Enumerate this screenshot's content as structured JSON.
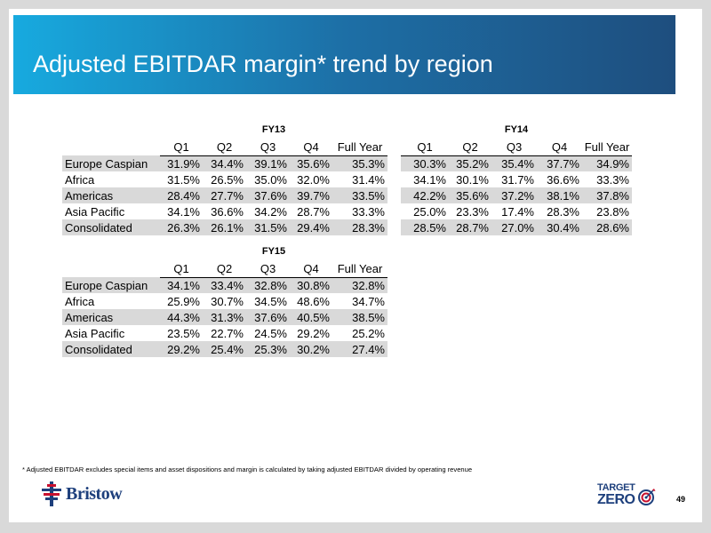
{
  "title": "Adjusted EBITDAR margin* trend by region",
  "columns": [
    "Q1",
    "Q2",
    "Q3",
    "Q4",
    "Full Year"
  ],
  "tables": [
    {
      "year": "FY13",
      "rows": [
        {
          "region": "Europe Caspian",
          "values": [
            "31.9%",
            "34.4%",
            "39.1%",
            "35.6%",
            "35.3%"
          ]
        },
        {
          "region": "Africa",
          "values": [
            "31.5%",
            "26.5%",
            "35.0%",
            "32.0%",
            "31.4%"
          ]
        },
        {
          "region": "Americas",
          "values": [
            "28.4%",
            "27.7%",
            "37.6%",
            "39.7%",
            "33.5%"
          ]
        },
        {
          "region": "Asia Pacific",
          "values": [
            "34.1%",
            "36.6%",
            "34.2%",
            "28.7%",
            "33.3%"
          ]
        },
        {
          "region": "Consolidated",
          "values": [
            "26.3%",
            "26.1%",
            "31.5%",
            "29.4%",
            "28.3%"
          ]
        }
      ]
    },
    {
      "year": "FY14",
      "rows": [
        {
          "values": [
            "30.3%",
            "35.2%",
            "35.4%",
            "37.7%",
            "34.9%"
          ]
        },
        {
          "values": [
            "34.1%",
            "30.1%",
            "31.7%",
            "36.6%",
            "33.3%"
          ]
        },
        {
          "values": [
            "42.2%",
            "35.6%",
            "37.2%",
            "38.1%",
            "37.8%"
          ]
        },
        {
          "values": [
            "25.0%",
            "23.3%",
            "17.4%",
            "28.3%",
            "23.8%"
          ]
        },
        {
          "values": [
            "28.5%",
            "28.7%",
            "27.0%",
            "30.4%",
            "28.6%"
          ]
        }
      ]
    },
    {
      "year": "FY15",
      "rows": [
        {
          "region": "Europe Caspian",
          "values": [
            "34.1%",
            "33.4%",
            "32.8%",
            "30.8%",
            "32.8%"
          ]
        },
        {
          "region": "Africa",
          "values": [
            "25.9%",
            "30.7%",
            "34.5%",
            "48.6%",
            "34.7%"
          ]
        },
        {
          "region": "Americas",
          "values": [
            "44.3%",
            "31.3%",
            "37.6%",
            "40.5%",
            "38.5%"
          ]
        },
        {
          "region": "Asia Pacific",
          "values": [
            "23.5%",
            "22.7%",
            "24.5%",
            "29.2%",
            "25.2%"
          ]
        },
        {
          "region": "Consolidated",
          "values": [
            "29.2%",
            "25.4%",
            "25.3%",
            "30.2%",
            "27.4%"
          ]
        }
      ]
    }
  ],
  "footnote": "* Adjusted EBITDAR excludes special items and asset dispositions and margin is calculated by taking adjusted EBITDAR divided by operating revenue",
  "logo_text": "Bristow",
  "target_zero": {
    "line1": "TARGET",
    "line2": "ZERO"
  },
  "page_number": "49",
  "colors": {
    "title_gradient_start": "#17aadf",
    "title_gradient_end": "#1e4e7e",
    "row_shading": "#d9d9d9",
    "brand_blue": "#1d3f7c",
    "brand_red": "#c8102e"
  }
}
